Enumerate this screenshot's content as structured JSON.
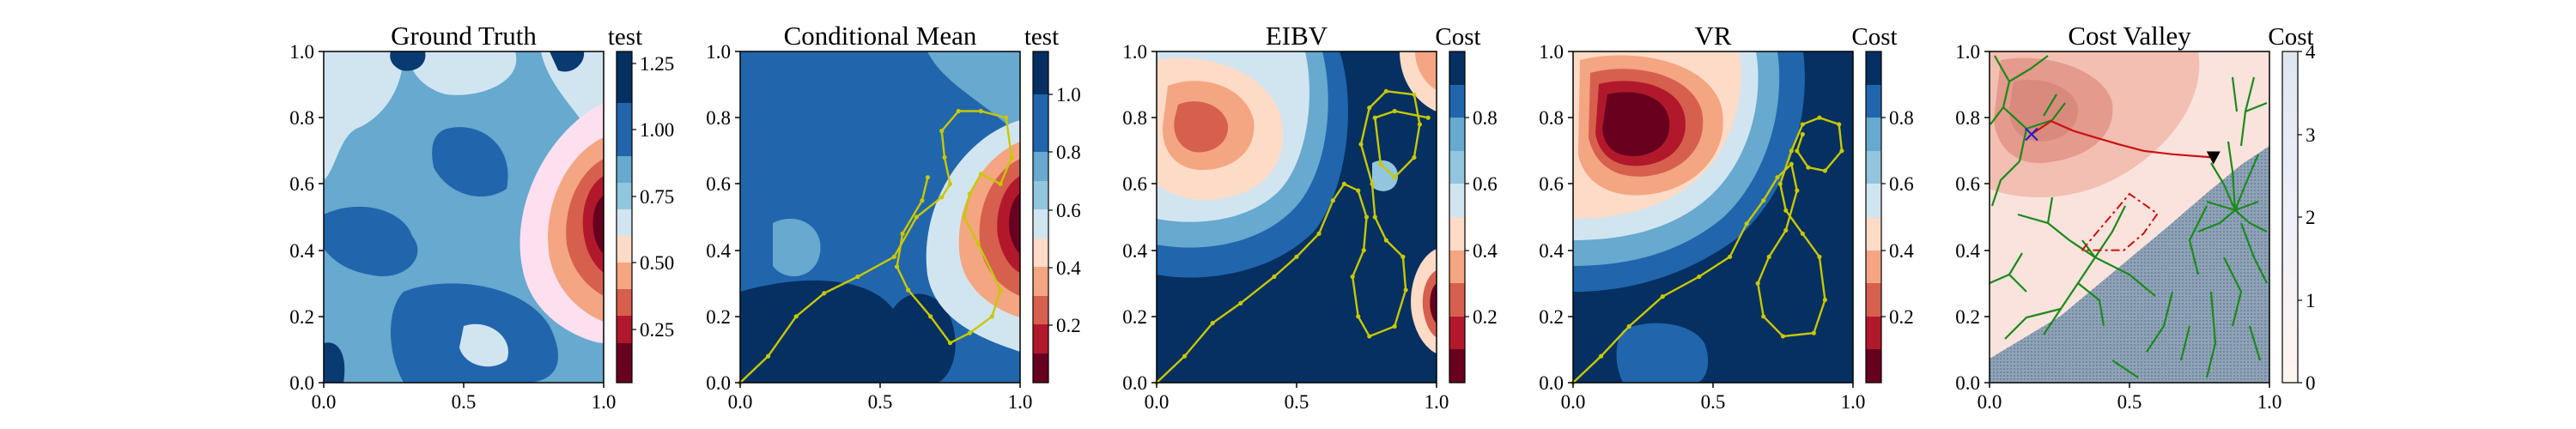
{
  "chart_data": [
    {
      "type": "heatmap",
      "title": "Ground Truth",
      "colorbar_label": "test",
      "colormap": "RdBu (discrete levels)",
      "xlim": [
        0,
        1
      ],
      "ylim": [
        0,
        1
      ],
      "x_ticks": [
        "0.0",
        "0.5",
        "1.0"
      ],
      "y_ticks": [
        "0.0",
        "0.2",
        "0.4",
        "0.6",
        "0.8",
        "1.0"
      ],
      "colorbar_range": [
        0,
        1.25
      ],
      "colorbar_ticks": [
        "0.25",
        "0.50",
        "0.75",
        "1.00",
        "1.25"
      ],
      "features": [
        {
          "kind": "hotspot",
          "label": "low value region",
          "center": [
            0.97,
            0.55
          ],
          "value": 0.1
        }
      ]
    },
    {
      "type": "heatmap",
      "title": "Conditional Mean",
      "colorbar_label": "test",
      "colormap": "RdBu (discrete levels)",
      "xlim": [
        0,
        1
      ],
      "ylim": [
        0,
        1
      ],
      "x_ticks": [
        "0.0",
        "0.5",
        "1.0"
      ],
      "y_ticks": [
        "0.0",
        "0.2",
        "0.4",
        "0.6",
        "0.8",
        "1.0"
      ],
      "colorbar_range": [
        0,
        1.15
      ],
      "colorbar_ticks": [
        "0.2",
        "0.4",
        "0.6",
        "0.8",
        "1.0"
      ],
      "path": [
        [
          0.0,
          0.0
        ],
        [
          0.1,
          0.08
        ],
        [
          0.2,
          0.2
        ],
        [
          0.3,
          0.27
        ],
        [
          0.42,
          0.32
        ],
        [
          0.55,
          0.38
        ],
        [
          0.63,
          0.5
        ],
        [
          0.72,
          0.56
        ],
        [
          0.75,
          0.6
        ],
        [
          0.73,
          0.68
        ],
        [
          0.72,
          0.76
        ],
        [
          0.78,
          0.82
        ],
        [
          0.86,
          0.82
        ],
        [
          0.95,
          0.8
        ],
        [
          0.97,
          0.68
        ],
        [
          0.93,
          0.6
        ],
        [
          0.86,
          0.63
        ],
        [
          0.82,
          0.57
        ],
        [
          0.8,
          0.5
        ],
        [
          0.85,
          0.42
        ],
        [
          0.93,
          0.28
        ],
        [
          0.9,
          0.2
        ],
        [
          0.82,
          0.15
        ],
        [
          0.75,
          0.12
        ],
        [
          0.68,
          0.2
        ],
        [
          0.6,
          0.28
        ],
        [
          0.56,
          0.35
        ],
        [
          0.58,
          0.45
        ],
        [
          0.65,
          0.55
        ],
        [
          0.67,
          0.62
        ]
      ]
    },
    {
      "type": "heatmap",
      "title": "EIBV",
      "colorbar_label": "Cost",
      "colormap": "RdBu (discrete levels)",
      "xlim": [
        0,
        1
      ],
      "ylim": [
        0,
        1
      ],
      "x_ticks": [
        "0.0",
        "0.5",
        "1.0"
      ],
      "y_ticks": [
        "0.0",
        "0.2",
        "0.4",
        "0.6",
        "0.8",
        "1.0"
      ],
      "colorbar_range": [
        0,
        1
      ],
      "colorbar_ticks": [
        "0.2",
        "0.4",
        "0.6",
        "0.8"
      ],
      "path": [
        [
          0.0,
          0.0
        ],
        [
          0.1,
          0.08
        ],
        [
          0.2,
          0.18
        ],
        [
          0.3,
          0.24
        ],
        [
          0.42,
          0.32
        ],
        [
          0.5,
          0.38
        ],
        [
          0.58,
          0.45
        ],
        [
          0.63,
          0.55
        ],
        [
          0.67,
          0.6
        ],
        [
          0.72,
          0.58
        ],
        [
          0.75,
          0.5
        ],
        [
          0.74,
          0.4
        ],
        [
          0.7,
          0.32
        ],
        [
          0.72,
          0.2
        ],
        [
          0.76,
          0.14
        ],
        [
          0.85,
          0.17
        ],
        [
          0.89,
          0.28
        ],
        [
          0.88,
          0.38
        ],
        [
          0.82,
          0.43
        ],
        [
          0.78,
          0.5
        ],
        [
          0.77,
          0.6
        ],
        [
          0.73,
          0.72
        ],
        [
          0.76,
          0.83
        ],
        [
          0.82,
          0.88
        ],
        [
          0.92,
          0.87
        ],
        [
          0.94,
          0.78
        ],
        [
          0.92,
          0.68
        ],
        [
          0.85,
          0.62
        ],
        [
          0.8,
          0.66
        ],
        [
          0.78,
          0.8
        ],
        [
          0.85,
          0.82
        ],
        [
          0.97,
          0.8
        ]
      ]
    },
    {
      "type": "heatmap",
      "title": "VR",
      "colorbar_label": "Cost",
      "colormap": "RdBu (discrete levels)",
      "xlim": [
        0,
        1
      ],
      "ylim": [
        0,
        1
      ],
      "x_ticks": [
        "0.0",
        "0.5",
        "1.0"
      ],
      "y_ticks": [
        "0.0",
        "0.2",
        "0.4",
        "0.6",
        "0.8",
        "1.0"
      ],
      "colorbar_range": [
        0,
        1
      ],
      "colorbar_ticks": [
        "0.2",
        "0.4",
        "0.6",
        "0.8"
      ],
      "path": [
        [
          0.0,
          0.0
        ],
        [
          0.1,
          0.08
        ],
        [
          0.2,
          0.17
        ],
        [
          0.32,
          0.26
        ],
        [
          0.45,
          0.32
        ],
        [
          0.56,
          0.38
        ],
        [
          0.62,
          0.48
        ],
        [
          0.68,
          0.55
        ],
        [
          0.73,
          0.62
        ],
        [
          0.78,
          0.66
        ],
        [
          0.8,
          0.58
        ],
        [
          0.76,
          0.46
        ],
        [
          0.7,
          0.38
        ],
        [
          0.66,
          0.3
        ],
        [
          0.68,
          0.2
        ],
        [
          0.75,
          0.14
        ],
        [
          0.86,
          0.15
        ],
        [
          0.9,
          0.25
        ],
        [
          0.88,
          0.38
        ],
        [
          0.82,
          0.45
        ],
        [
          0.76,
          0.52
        ],
        [
          0.74,
          0.6
        ],
        [
          0.78,
          0.7
        ],
        [
          0.82,
          0.78
        ],
        [
          0.88,
          0.8
        ],
        [
          0.95,
          0.78
        ],
        [
          0.96,
          0.7
        ],
        [
          0.9,
          0.64
        ],
        [
          0.84,
          0.65
        ],
        [
          0.8,
          0.7
        ],
        [
          0.82,
          0.75
        ]
      ]
    },
    {
      "type": "heatmap",
      "title": "Cost Valley",
      "colorbar_label": "Cost",
      "colormap": "Reds",
      "xlim": [
        0,
        1
      ],
      "ylim": [
        0,
        1
      ],
      "x_ticks": [
        "0.0",
        "0.5",
        "1.0"
      ],
      "y_ticks": [
        "0.0",
        "0.2",
        "0.4",
        "0.6",
        "0.8",
        "1.0"
      ],
      "colorbar_range": [
        0,
        4
      ],
      "colorbar_ticks": [
        "0",
        "1",
        "2",
        "3",
        "4"
      ],
      "markers": [
        {
          "symbol": "x",
          "color": "#2222cc",
          "x": 0.15,
          "y": 0.75
        },
        {
          "symbol": "triangle-down",
          "color": "#000000",
          "x": 0.8,
          "y": 0.68
        }
      ],
      "route": [
        [
          0.15,
          0.75
        ],
        [
          0.22,
          0.79
        ],
        [
          0.3,
          0.76
        ],
        [
          0.38,
          0.74
        ],
        [
          0.46,
          0.72
        ],
        [
          0.55,
          0.7
        ],
        [
          0.65,
          0.69
        ],
        [
          0.8,
          0.68
        ]
      ],
      "trajectory": [
        [
          0.33,
          0.4
        ],
        [
          0.42,
          0.49
        ],
        [
          0.5,
          0.57
        ],
        [
          0.6,
          0.51
        ],
        [
          0.55,
          0.45
        ],
        [
          0.48,
          0.4
        ],
        [
          0.42,
          0.4
        ]
      ]
    }
  ]
}
